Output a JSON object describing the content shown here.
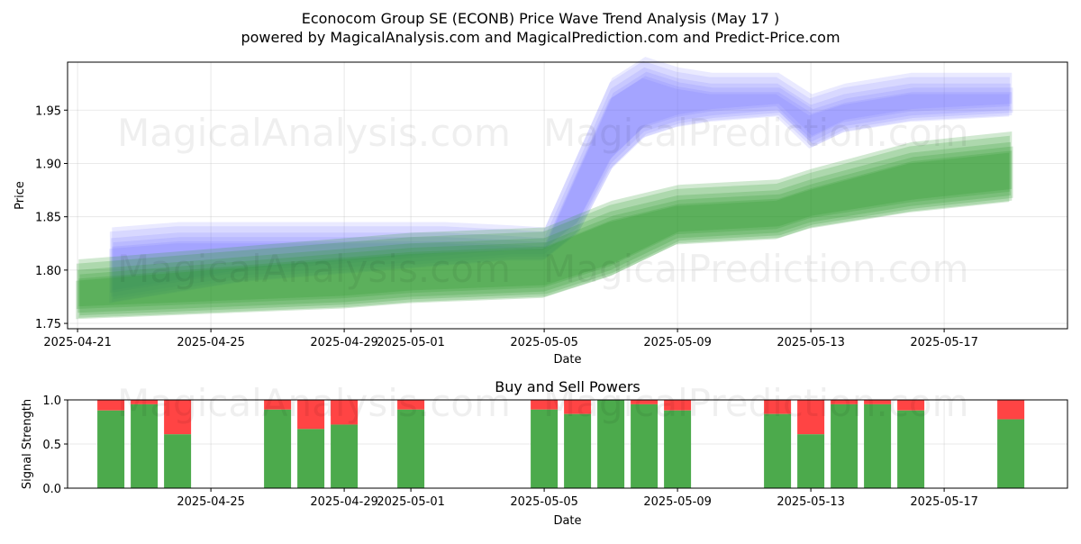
{
  "title_line1": "Econocom Group SE (ECONB) Price Wave Trend Analysis (May 17 )",
  "title_line2": "powered by MagicalAnalysis.com and MagicalPrediction.com and Predict-Price.com",
  "watermarks": [
    "MagicalAnalysis.com",
    "MagicalPrediction.com"
  ],
  "colors": {
    "blue": "#6a6aff",
    "green": "#2e9a2e",
    "buy": "#4caa4c",
    "sell": "#ff4444"
  },
  "chart_data": [
    {
      "type": "area",
      "title": "",
      "xlabel": "Date",
      "ylabel": "Price",
      "xlim": [
        "2025-04-20.7",
        "2025-05-20.7"
      ],
      "ylim": [
        1.745,
        1.995
      ],
      "x_ticks": [
        "2025-04-21",
        "2025-04-25",
        "2025-04-29",
        "2025-05-01",
        "2025-05-05",
        "2025-05-09",
        "2025-05-13",
        "2025-05-17"
      ],
      "y_ticks": [
        "1.75",
        "1.80",
        "1.85",
        "1.90",
        "1.95"
      ],
      "grid": true,
      "series": [
        {
          "group": "blue",
          "x": [
            "2025-04-22",
            "2025-04-24",
            "2025-04-26",
            "2025-04-28",
            "2025-04-30",
            "2025-05-02",
            "2025-05-04",
            "2025-05-05",
            "2025-05-06",
            "2025-05-07",
            "2025-05-08",
            "2025-05-09",
            "2025-05-10",
            "2025-05-12",
            "2025-05-13",
            "2025-05-14",
            "2025-05-16",
            "2025-05-19"
          ],
          "lower": [
            1.775,
            1.785,
            1.795,
            1.8,
            1.805,
            1.81,
            1.815,
            1.815,
            1.84,
            1.9,
            1.93,
            1.94,
            1.945,
            1.95,
            1.92,
            1.935,
            1.945,
            1.95
          ],
          "upper": [
            1.83,
            1.835,
            1.835,
            1.835,
            1.835,
            1.835,
            1.832,
            1.83,
            1.9,
            1.97,
            1.99,
            1.98,
            1.975,
            1.975,
            1.955,
            1.965,
            1.975,
            1.975
          ]
        },
        {
          "group": "green",
          "x": [
            "2025-04-21",
            "2025-04-25",
            "2025-04-29",
            "2025-05-01",
            "2025-05-05",
            "2025-05-07",
            "2025-05-09",
            "2025-05-12",
            "2025-05-13",
            "2025-05-16",
            "2025-05-19"
          ],
          "lower": [
            1.76,
            1.765,
            1.77,
            1.775,
            1.78,
            1.8,
            1.83,
            1.835,
            1.845,
            1.86,
            1.87
          ],
          "upper": [
            1.8,
            1.81,
            1.82,
            1.825,
            1.83,
            1.855,
            1.87,
            1.875,
            1.885,
            1.91,
            1.92
          ]
        }
      ]
    },
    {
      "type": "bar",
      "title": "Buy and Sell Powers",
      "xlabel": "Date",
      "ylabel": "Signal Strength",
      "ylim": [
        0,
        1.0
      ],
      "x_ticks": [
        "2025-04-25",
        "2025-04-29",
        "2025-05-01",
        "2025-05-05",
        "2025-05-09",
        "2025-05-13",
        "2025-05-17"
      ],
      "y_ticks": [
        "0.0",
        "0.5",
        "1.0"
      ],
      "grid": true,
      "categories": [
        "2025-04-22",
        "2025-04-23",
        "2025-04-24",
        "2025-04-27",
        "2025-04-28",
        "2025-04-29",
        "2025-05-01",
        "2025-05-05",
        "2025-05-06",
        "2025-05-07",
        "2025-05-08",
        "2025-05-09",
        "2025-05-12",
        "2025-05-13",
        "2025-05-14",
        "2025-05-15",
        "2025-05-16",
        "2025-05-19"
      ],
      "buy": [
        0.88,
        0.95,
        0.61,
        0.89,
        0.67,
        0.72,
        0.89,
        0.89,
        0.84,
        1.0,
        0.95,
        0.88,
        0.84,
        0.61,
        0.95,
        0.95,
        0.88,
        0.78
      ]
    }
  ]
}
